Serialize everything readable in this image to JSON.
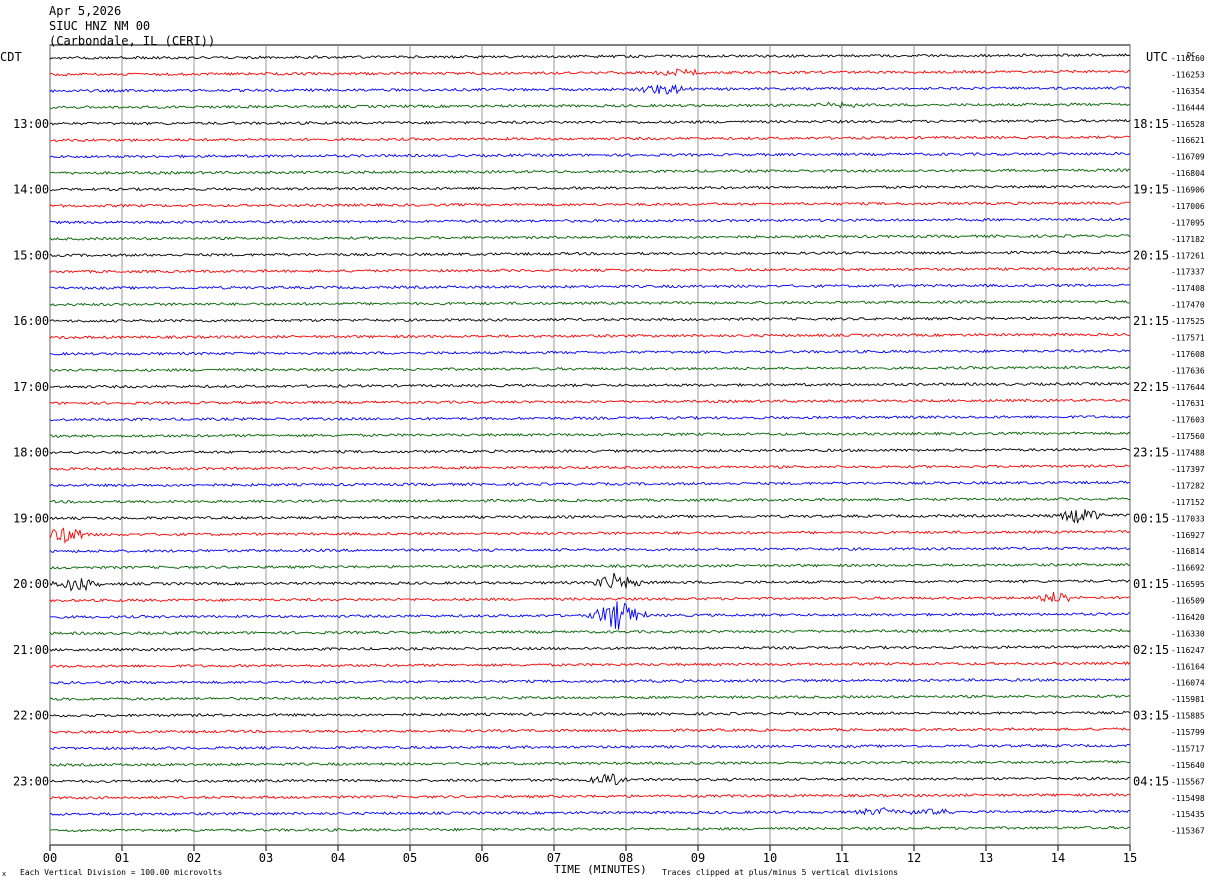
{
  "header": {
    "date": "Apr 5,2026",
    "station": "SIUC HNZ NM 00",
    "location": "(Carbondale, IL (CERI))"
  },
  "left_tz": "CDT",
  "right_tz": "UTC",
  "dc_label": "DC",
  "footer": {
    "left_mark": "x",
    "scale": "Each Vertical Division =  100.00 microvolts",
    "xlabel": "TIME (MINUTES)",
    "clip_note": "Traces clipped at plus/minus 5 vertical divisions"
  },
  "colors": {
    "trace_cycle": [
      "#000000",
      "#ff0000",
      "#0000ff",
      "#006400"
    ],
    "grid": "#808080"
  },
  "chart_data": {
    "type": "line",
    "title": "SIUC HNZ NM 00",
    "xlabel": "TIME (MINUTES)",
    "x_ticks": [
      "00",
      "01",
      "02",
      "03",
      "04",
      "05",
      "06",
      "07",
      "08",
      "09",
      "10",
      "11",
      "12",
      "13",
      "14",
      "15"
    ],
    "xlim": [
      0,
      15
    ],
    "left_hour_labels": [
      "13:00",
      "14:00",
      "15:00",
      "16:00",
      "17:00",
      "18:00",
      "19:00",
      "20:00",
      "21:00",
      "22:00",
      "23:00"
    ],
    "right_hour_labels": [
      "18:15",
      "19:15",
      "20:15",
      "21:15",
      "22:15",
      "23:15",
      "00:15",
      "01:15",
      "02:15",
      "03:15",
      "04:15"
    ],
    "traces_per_hour": 4,
    "dc_offsets": [
      -116160,
      -116253,
      -116354,
      -116444,
      -116528,
      -116621,
      -116709,
      -116804,
      -116906,
      -117006,
      -117095,
      -117182,
      -117261,
      -117337,
      -117408,
      -117470,
      -117525,
      -117571,
      -117608,
      -117636,
      -117644,
      -117631,
      -117603,
      -117560,
      -117488,
      -117397,
      -117282,
      -117152,
      -117033,
      -116927,
      -116814,
      -116692,
      -116595,
      -116509,
      -116420,
      -116330,
      -116247,
      -116164,
      -116074,
      -115981,
      -115885,
      -115799,
      -115717,
      -115640,
      -115567,
      -115498,
      -115435,
      -115367
    ],
    "events": [
      {
        "trace": 1,
        "minute": 8.8,
        "amp": 4
      },
      {
        "trace": 2,
        "minute": 8.5,
        "amp": 6
      },
      {
        "trace": 3,
        "minute": 11.0,
        "amp": 3
      },
      {
        "trace": 28,
        "minute": 14.3,
        "amp": 9
      },
      {
        "trace": 29,
        "minute": 0.2,
        "amp": 8
      },
      {
        "trace": 32,
        "minute": 0.4,
        "amp": 8
      },
      {
        "trace": 32,
        "minute": 7.9,
        "amp": 10
      },
      {
        "trace": 33,
        "minute": 14.0,
        "amp": 6
      },
      {
        "trace": 34,
        "minute": 7.9,
        "amp": 16
      },
      {
        "trace": 44,
        "minute": 7.8,
        "amp": 6
      },
      {
        "trace": 46,
        "minute": 11.5,
        "amp": 5
      },
      {
        "trace": 46,
        "minute": 12.2,
        "amp": 4
      }
    ]
  }
}
